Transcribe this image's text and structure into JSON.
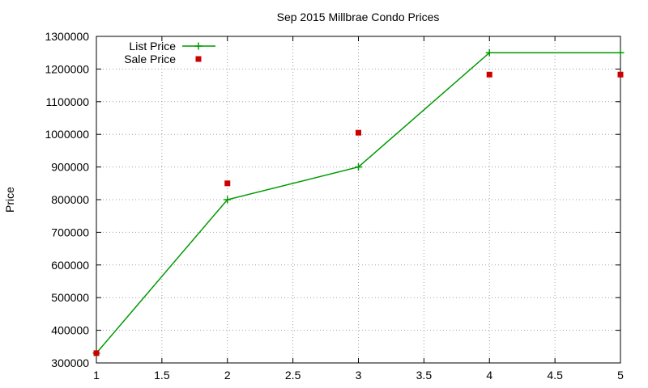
{
  "chart_data": {
    "type": "line",
    "title": "Sep 2015 Millbrae Condo Prices",
    "xlabel": "",
    "ylabel": "Price",
    "xlim": [
      1,
      5
    ],
    "ylim": [
      300000,
      1300000
    ],
    "x_ticks": [
      1,
      1.5,
      2,
      2.5,
      3,
      3.5,
      4,
      4.5,
      5
    ],
    "x_tick_labels": [
      "1",
      "1.5",
      "2",
      "2.5",
      "3",
      "3.5",
      "4",
      "4.5",
      "5"
    ],
    "y_ticks": [
      300000,
      400000,
      500000,
      600000,
      700000,
      800000,
      900000,
      1000000,
      1100000,
      1200000,
      1300000
    ],
    "y_tick_labels": [
      "300000",
      "400000",
      "500000",
      "600000",
      "700000",
      "800000",
      "900000",
      "1000000",
      "1100000",
      "1200000",
      "1300000"
    ],
    "grid": true,
    "legend_position": "top-left",
    "series": [
      {
        "name": "List Price",
        "style": "linespoints",
        "marker": "plus",
        "color": "#009900",
        "x": [
          1,
          2,
          3,
          4,
          5
        ],
        "y": [
          330000,
          800000,
          900000,
          1250000,
          1250000
        ]
      },
      {
        "name": "Sale Price",
        "style": "points",
        "marker": "square",
        "color": "#cc0000",
        "x": [
          1,
          2,
          3,
          4,
          5
        ],
        "y": [
          330000,
          850000,
          1005000,
          1183000,
          1183000
        ]
      }
    ]
  }
}
